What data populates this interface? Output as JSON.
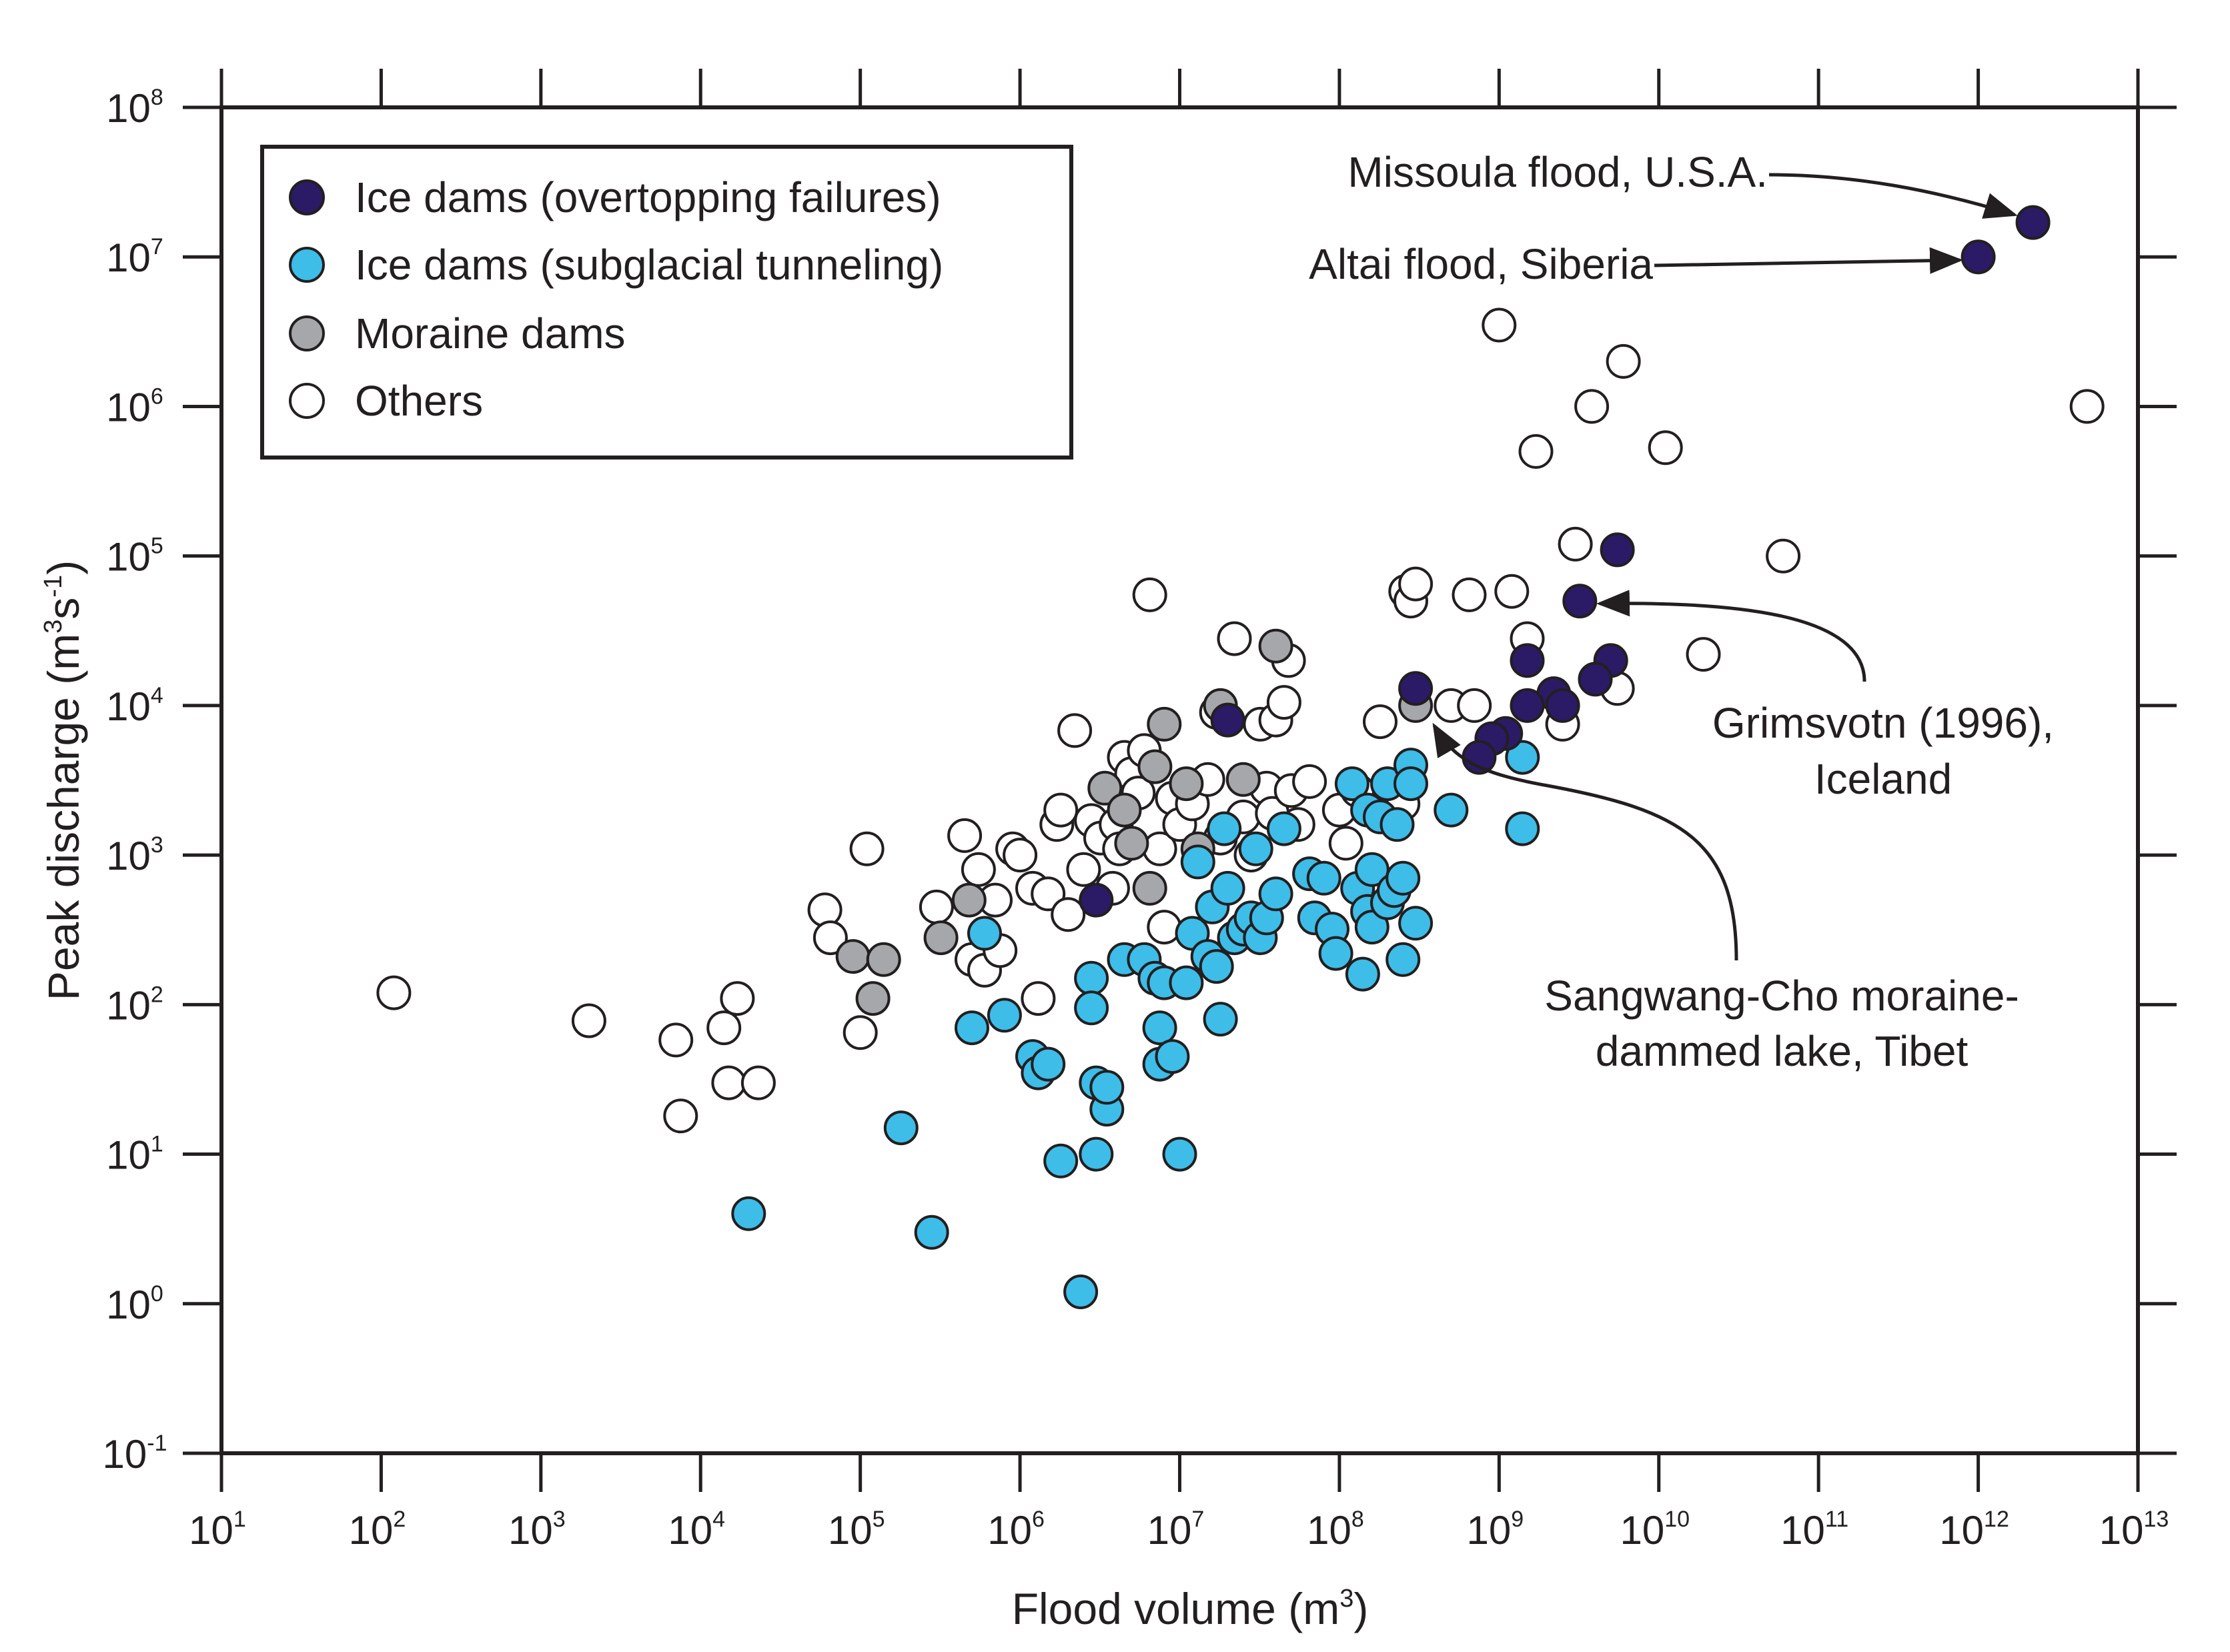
{
  "chart_data": {
    "type": "scatter",
    "xscale": "log",
    "yscale": "log",
    "xlim": [
      10,
      10000000000000
    ],
    "ylim": [
      0.1,
      100000000
    ],
    "x_ticks": [
      {
        "base": "10",
        "exp": "1"
      },
      {
        "base": "10",
        "exp": "2"
      },
      {
        "base": "10",
        "exp": "3"
      },
      {
        "base": "10",
        "exp": "4"
      },
      {
        "base": "10",
        "exp": "5"
      },
      {
        "base": "10",
        "exp": "6"
      },
      {
        "base": "10",
        "exp": "7"
      },
      {
        "base": "10",
        "exp": "8"
      },
      {
        "base": "10",
        "exp": "9"
      },
      {
        "base": "10",
        "exp": "10"
      },
      {
        "base": "10",
        "exp": "11"
      },
      {
        "base": "10",
        "exp": "12"
      },
      {
        "base": "10",
        "exp": "13"
      }
    ],
    "y_ticks": [
      {
        "base": "10",
        "exp": "-1"
      },
      {
        "base": "10",
        "exp": "0"
      },
      {
        "base": "10",
        "exp": "1"
      },
      {
        "base": "10",
        "exp": "2"
      },
      {
        "base": "10",
        "exp": "3"
      },
      {
        "base": "10",
        "exp": "4"
      },
      {
        "base": "10",
        "exp": "5"
      },
      {
        "base": "10",
        "exp": "6"
      },
      {
        "base": "10",
        "exp": "7"
      },
      {
        "base": "10",
        "exp": "8"
      }
    ],
    "xlabel": {
      "text": "Flood volume (m",
      "sup": "3",
      "tail": ")"
    },
    "ylabel": {
      "parts": [
        "Peak discharge (m",
        "s",
        ")"
      ],
      "sups": [
        "3",
        "-1"
      ]
    },
    "legend_position": "top-left",
    "series": [
      {
        "name": "Ice dams (overtopping failures)",
        "color": "#2b1a66",
        "points": [
          [
            2200000000000.0,
            17000000.0
          ],
          [
            1000000000000.0,
            10000000.0
          ],
          [
            5500000000.0,
            110000.0
          ],
          [
            3200000000.0,
            50000.0
          ],
          [
            1500000000.0,
            20000.0
          ],
          [
            5000000000.0,
            20000.0
          ],
          [
            4000000000.0,
            15000.0
          ],
          [
            2200000000.0,
            12000.0
          ],
          [
            300000000.0,
            13000.0
          ],
          [
            2500000000.0,
            10000.0
          ],
          [
            1500000000.0,
            10000.0
          ],
          [
            1100000000.0,
            6500.0
          ],
          [
            900000000.0,
            6000.0
          ],
          [
            750000000.0,
            4500.0
          ],
          [
            20000000.0,
            8000.0
          ],
          [
            3000000.0,
            500.0
          ]
        ]
      },
      {
        "name": "Ice dams (subglacial tunneling)",
        "color": "#3dbde8",
        "points": [
          [
            20000.0,
            4.0
          ],
          [
            180000.0,
            15
          ],
          [
            280000.0,
            3.0
          ],
          [
            500000.0,
            70
          ],
          [
            600000.0,
            300
          ],
          [
            800000.0,
            85
          ],
          [
            1200000.0,
            45
          ],
          [
            1300000.0,
            35
          ],
          [
            1500000.0,
            40
          ],
          [
            1800000.0,
            9
          ],
          [
            2400000.0,
            1.2
          ],
          [
            2800000.0,
            150
          ],
          [
            2800000.0,
            95
          ],
          [
            3000000.0,
            10
          ],
          [
            3000000.0,
            30
          ],
          [
            3500000.0,
            20
          ],
          [
            3500000.0,
            28
          ],
          [
            4500000.0,
            200
          ],
          [
            6000000.0,
            200
          ],
          [
            7000000.0,
            150
          ],
          [
            7500000.0,
            70
          ],
          [
            7500000.0,
            40
          ],
          [
            8000000.0,
            140
          ],
          [
            9000000.0,
            45
          ],
          [
            10000000.0,
            10
          ],
          [
            11000000.0,
            140
          ],
          [
            12000000.0,
            300
          ],
          [
            13000000.0,
            900
          ],
          [
            15000000.0,
            210
          ],
          [
            16000000.0,
            450
          ],
          [
            17000000.0,
            180
          ],
          [
            18000000.0,
            80
          ],
          [
            19000000.0,
            1500
          ],
          [
            20000000.0,
            600
          ],
          [
            22000000.0,
            280
          ],
          [
            25000000.0,
            320
          ],
          [
            28000000.0,
            380
          ],
          [
            30000000.0,
            1100
          ],
          [
            32000000.0,
            280
          ],
          [
            35000000.0,
            380
          ],
          [
            40000000.0,
            550
          ],
          [
            45000000.0,
            1500
          ],
          [
            65000000.0,
            750
          ],
          [
            70000000.0,
            380
          ],
          [
            80000000.0,
            700
          ],
          [
            90000000.0,
            320
          ],
          [
            95000000.0,
            220
          ],
          [
            120000000.0,
            3000
          ],
          [
            130000000.0,
            600
          ],
          [
            140000000.0,
            160
          ],
          [
            150000000.0,
            2000
          ],
          [
            150000000.0,
            420
          ],
          [
            160000000.0,
            800
          ],
          [
            160000000.0,
            330
          ],
          [
            180000000.0,
            1800
          ],
          [
            200000000.0,
            3000
          ],
          [
            200000000.0,
            480
          ],
          [
            220000000.0,
            580
          ],
          [
            230000000.0,
            1600
          ],
          [
            250000000.0,
            200
          ],
          [
            250000000.0,
            700
          ],
          [
            280000000.0,
            4000
          ],
          [
            280000000.0,
            3000
          ],
          [
            300000000.0,
            350
          ],
          [
            500000000.0,
            2000
          ],
          [
            1400000000.0,
            4500
          ],
          [
            1400000000.0,
            1500
          ]
        ]
      },
      {
        "name": "Moraine dams",
        "color": "#a5a7aa",
        "points": [
          [
            90000.0,
            210
          ],
          [
            120000.0,
            110
          ],
          [
            140000.0,
            200
          ],
          [
            320000.0,
            280
          ],
          [
            480000.0,
            500
          ],
          [
            3400000.0,
            2800
          ],
          [
            4500000.0,
            2000
          ],
          [
            5000000.0,
            1200
          ],
          [
            6500000.0,
            600
          ],
          [
            7000000.0,
            3900
          ],
          [
            8000000.0,
            7500
          ],
          [
            11000000.0,
            3000
          ],
          [
            13000000.0,
            1100
          ],
          [
            18000000.0,
            10000
          ],
          [
            25000000.0,
            3200
          ],
          [
            40000000.0,
            25000
          ],
          [
            300000000.0,
            10000
          ]
        ]
      },
      {
        "name": "Others",
        "color": "#ffffff",
        "points": [
          [
            120.0,
            120
          ],
          [
            2000.0,
            78
          ],
          [
            7000.0,
            58
          ],
          [
            7500.0,
            18
          ],
          [
            14000.0,
            70
          ],
          [
            15000.0,
            30
          ],
          [
            17000.0,
            110
          ],
          [
            23000.0,
            30
          ],
          [
            60000.0,
            430
          ],
          [
            65000.0,
            280
          ],
          [
            100000.0,
            65
          ],
          [
            110000.0,
            1100
          ],
          [
            300000.0,
            450
          ],
          [
            450000.0,
            1350
          ],
          [
            500000.0,
            200
          ],
          [
            550000.0,
            800
          ],
          [
            600000.0,
            170
          ],
          [
            700000.0,
            500
          ],
          [
            750000.0,
            230
          ],
          [
            900000.0,
            1100
          ],
          [
            1000000.0,
            1000
          ],
          [
            1200000.0,
            600
          ],
          [
            1300000.0,
            110
          ],
          [
            1500000.0,
            550
          ],
          [
            1700000.0,
            1600
          ],
          [
            1800000.0,
            2000
          ],
          [
            2000000.0,
            400
          ],
          [
            2200000.0,
            6800
          ],
          [
            2500000.0,
            800
          ],
          [
            2800000.0,
            1700
          ],
          [
            3200000.0,
            1300
          ],
          [
            3800000.0,
            600
          ],
          [
            4000000.0,
            1600
          ],
          [
            4200000.0,
            1100
          ],
          [
            4500000.0,
            4500
          ],
          [
            5000000.0,
            3500
          ],
          [
            5500000.0,
            2600
          ],
          [
            6000000.0,
            5000
          ],
          [
            6500000.0,
            55000
          ],
          [
            7500000.0,
            1100
          ],
          [
            8000000.0,
            330
          ],
          [
            9000000.0,
            2400
          ],
          [
            10000000.0,
            1600
          ],
          [
            12000000.0,
            2200
          ],
          [
            15000000.0,
            3200
          ],
          [
            17000000.0,
            9000
          ],
          [
            18000000.0,
            1300
          ],
          [
            22000000.0,
            28000
          ],
          [
            25000000.0,
            1800
          ],
          [
            28000000.0,
            1000
          ],
          [
            32000000.0,
            7500
          ],
          [
            35000000.0,
            2800
          ],
          [
            38000000.0,
            1900
          ],
          [
            40000000.0,
            8000
          ],
          [
            45000000.0,
            10500
          ],
          [
            48000000.0,
            20000
          ],
          [
            50000000.0,
            2700
          ],
          [
            55000000.0,
            1600
          ],
          [
            65000000.0,
            3100
          ],
          [
            100000000.0,
            2000
          ],
          [
            110000000.0,
            1200
          ],
          [
            130000000.0,
            2700
          ],
          [
            180000000.0,
            7800
          ],
          [
            250000000.0,
            2200
          ],
          [
            260000000.0,
            58000
          ],
          [
            280000000.0,
            50000
          ],
          [
            300000000.0,
            65000
          ],
          [
            500000000.0,
            10000
          ],
          [
            650000000.0,
            55000
          ],
          [
            700000000.0,
            10000
          ],
          [
            1000000000.0,
            3500000
          ],
          [
            1200000000.0,
            58000
          ],
          [
            1500000000.0,
            28000
          ],
          [
            1700000000.0,
            500000
          ],
          [
            2500000000.0,
            7500
          ],
          [
            3000000000.0,
            120000
          ],
          [
            3800000000.0,
            1000000
          ],
          [
            5500000000.0,
            13000
          ],
          [
            6000000000.0,
            2000000
          ],
          [
            11000000000.0,
            530000
          ],
          [
            19000000000.0,
            22000
          ],
          [
            60000000000.0,
            100000
          ],
          [
            4800000000000.0,
            1000000
          ]
        ]
      }
    ],
    "annotations": [
      {
        "id": "missoula",
        "lines": [
          "Missoula flood, U.S.A."
        ],
        "target": [
          2200000000000.0,
          17000000.0
        ]
      },
      {
        "id": "altai",
        "lines": [
          "Altai flood, Siberia"
        ],
        "target": [
          1000000000000.0,
          10000000.0
        ]
      },
      {
        "id": "grimsvotn",
        "lines": [
          "Grimsvotn (1996),",
          "Iceland"
        ],
        "target": [
          3200000000.0,
          50000.0
        ]
      },
      {
        "id": "sangwang",
        "lines": [
          "Sangwang-Cho moraine-",
          "dammed lake, Tibet"
        ],
        "target": [
          300000000.0,
          10000.0
        ]
      }
    ]
  }
}
